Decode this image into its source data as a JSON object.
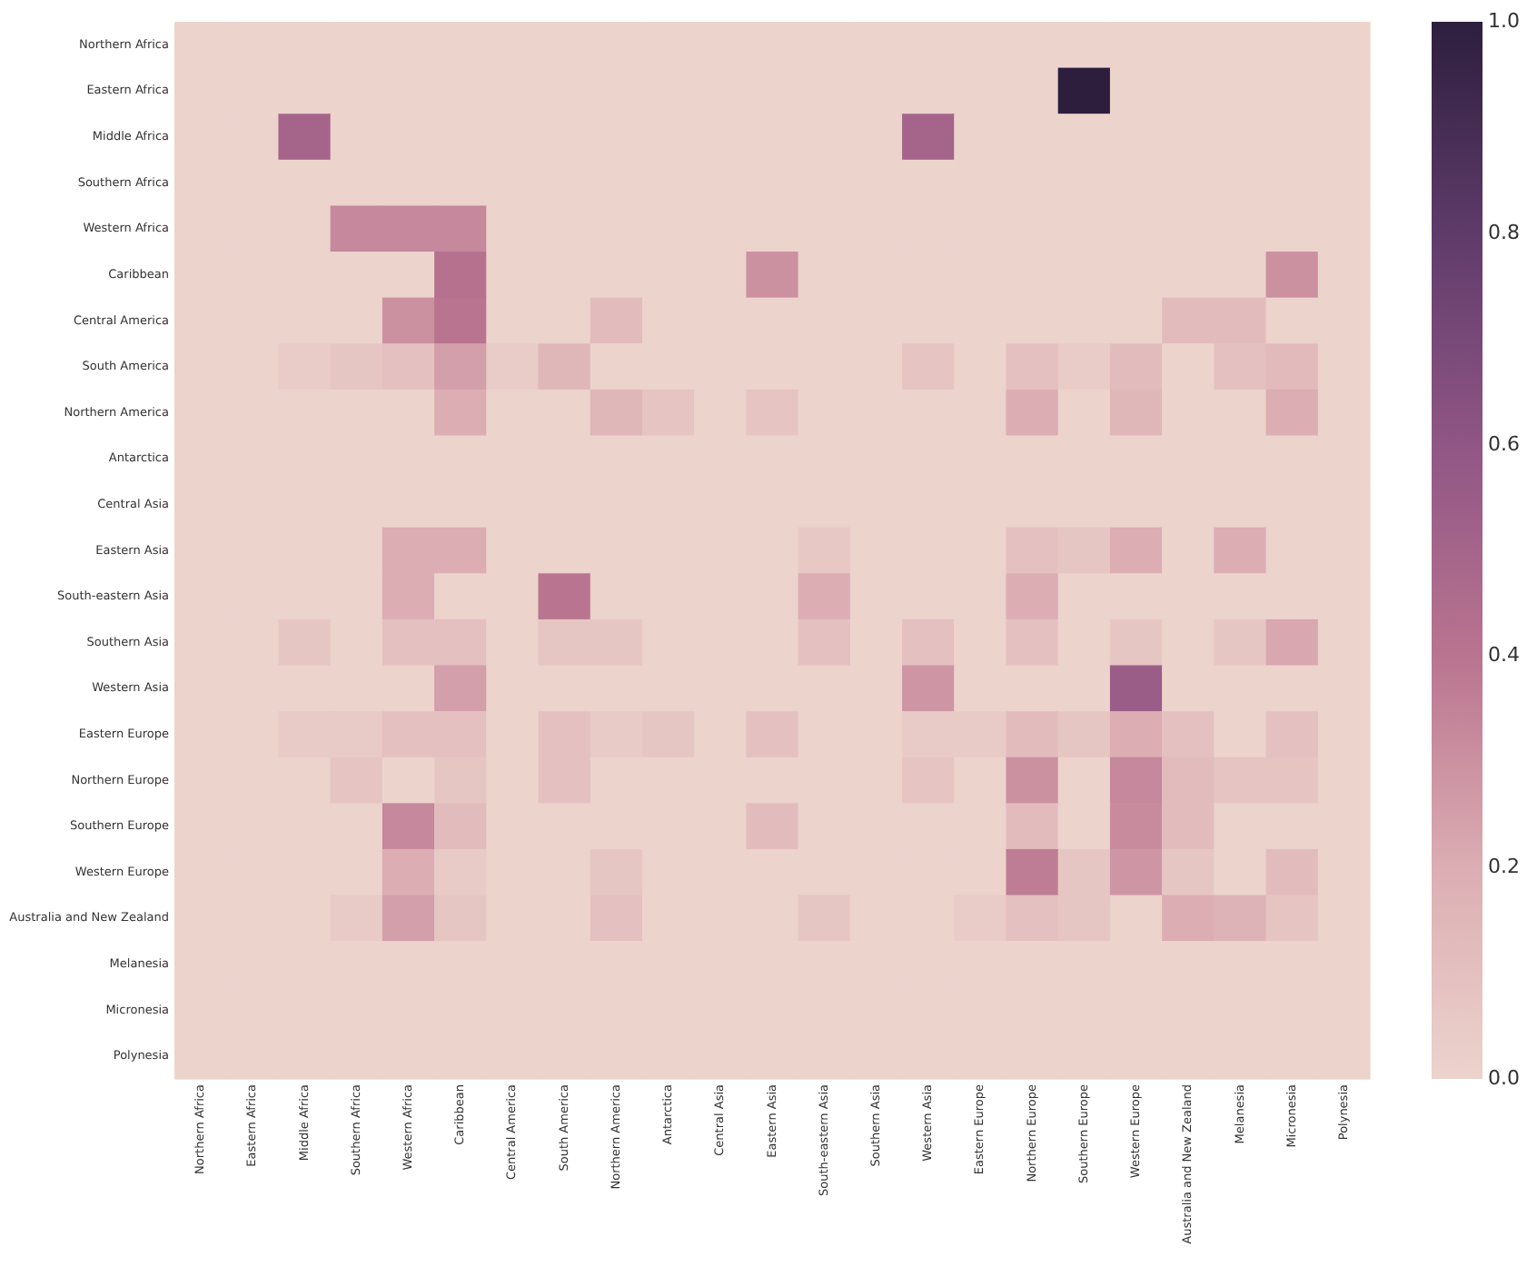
{
  "chart_data": {
    "type": "heatmap",
    "categories": [
      "Northern Africa",
      "Eastern Africa",
      "Middle Africa",
      "Southern Africa",
      "Western Africa",
      "Caribbean",
      "Central America",
      "South America",
      "Northern America",
      "Antarctica",
      "Central Asia",
      "Eastern Asia",
      "South-eastern Asia",
      "Southern Asia",
      "Western Asia",
      "Eastern Europe",
      "Northern Europe",
      "Southern Europe",
      "Western Europe",
      "Australia and New Zealand",
      "Melanesia",
      "Micronesia",
      "Polynesia"
    ],
    "y_categories": [
      "Northern Africa",
      "Eastern Africa",
      "Middle Africa",
      "Southern Africa",
      "Western Africa",
      "Caribbean",
      "Central America",
      "South America",
      "Northern America",
      "Antarctica",
      "Central Asia",
      "Eastern Asia",
      "South-eastern Asia",
      "Southern Asia",
      "Western Asia",
      "Eastern Europe",
      "Northern Europe",
      "Southern Europe",
      "Western Europe",
      "Australia and New Zealand",
      "Melanesia",
      "Micronesia",
      "Polynesia"
    ],
    "cells": [
      [
        0,
        0,
        0,
        0,
        0,
        0,
        0,
        0,
        0,
        0,
        0,
        0,
        0,
        0,
        0,
        0,
        0,
        0,
        0,
        0,
        0,
        0,
        0
      ],
      [
        0,
        0,
        0,
        0,
        0,
        0,
        0,
        0,
        0,
        0,
        0,
        0,
        0,
        0,
        0,
        0,
        0,
        1.0,
        0,
        0,
        0,
        0,
        0
      ],
      [
        0,
        0,
        0.5,
        0,
        0,
        0,
        0,
        0,
        0,
        0,
        0,
        0,
        0,
        0,
        0.5,
        0,
        0,
        0,
        0,
        0,
        0,
        0,
        0
      ],
      [
        0,
        0,
        0,
        0,
        0,
        0,
        0,
        0,
        0,
        0,
        0,
        0,
        0,
        0,
        0,
        0,
        0,
        0,
        0,
        0,
        0,
        0,
        0
      ],
      [
        0,
        0,
        0,
        0.33,
        0.33,
        0.33,
        0,
        0,
        0,
        0,
        0,
        0,
        0,
        0,
        0,
        0,
        0,
        0,
        0,
        0,
        0,
        0,
        0
      ],
      [
        0,
        0,
        0,
        0,
        0,
        0.42,
        0,
        0,
        0,
        0,
        0,
        0.3,
        0,
        0,
        0,
        0,
        0,
        0,
        0,
        0,
        0,
        0.3,
        0
      ],
      [
        0,
        0,
        0,
        0,
        0.3,
        0.4,
        0,
        0,
        0.12,
        0,
        0,
        0,
        0,
        0,
        0,
        0,
        0,
        0,
        0,
        0.12,
        0.12,
        0,
        0
      ],
      [
        0,
        0,
        0.04,
        0.07,
        0.1,
        0.25,
        0.04,
        0.15,
        0,
        0,
        0,
        0,
        0,
        0,
        0.08,
        0,
        0.1,
        0.04,
        0.12,
        0,
        0.1,
        0.13,
        0
      ],
      [
        0,
        0,
        0,
        0,
        0,
        0.2,
        0,
        0,
        0.15,
        0.08,
        0,
        0.08,
        0,
        0,
        0,
        0,
        0.2,
        0,
        0.15,
        0,
        0,
        0.2,
        0
      ],
      [
        0,
        0,
        0,
        0,
        0,
        0,
        0,
        0,
        0,
        0,
        0,
        0,
        0,
        0,
        0,
        0,
        0,
        0,
        0,
        0,
        0,
        0,
        0
      ],
      [
        0,
        0,
        0,
        0,
        0,
        0,
        0,
        0,
        0,
        0,
        0,
        0,
        0,
        0,
        0,
        0,
        0,
        0,
        0,
        0,
        0,
        0,
        0
      ],
      [
        0,
        0,
        0,
        0,
        0.2,
        0.2,
        0,
        0,
        0,
        0,
        0,
        0,
        0.06,
        0,
        0,
        0,
        0.1,
        0.07,
        0.2,
        0,
        0.2,
        0,
        0
      ],
      [
        0,
        0,
        0,
        0,
        0.2,
        0,
        0,
        0.4,
        0,
        0,
        0,
        0,
        0.2,
        0,
        0,
        0,
        0.2,
        0,
        0,
        0,
        0,
        0,
        0
      ],
      [
        0,
        0,
        0.07,
        0,
        0.1,
        0.1,
        0,
        0.07,
        0.07,
        0,
        0,
        0,
        0.1,
        0,
        0.1,
        0,
        0.1,
        0,
        0.07,
        0,
        0.07,
        0.22,
        0
      ],
      [
        0,
        0,
        0,
        0,
        0,
        0.25,
        0,
        0,
        0,
        0,
        0,
        0,
        0,
        0,
        0.28,
        0,
        0,
        0,
        0.55,
        0,
        0,
        0,
        0
      ],
      [
        0,
        0,
        0.05,
        0.05,
        0.1,
        0.1,
        0,
        0.1,
        0.05,
        0.07,
        0,
        0.1,
        0,
        0,
        0.05,
        0.05,
        0.12,
        0.07,
        0.2,
        0.1,
        0,
        0.1,
        0
      ],
      [
        0,
        0,
        0,
        0.08,
        0,
        0.07,
        0,
        0.1,
        0,
        0,
        0,
        0,
        0,
        0,
        0.08,
        0,
        0.3,
        0,
        0.33,
        0.12,
        0.08,
        0.08,
        0
      ],
      [
        0,
        0,
        0,
        0,
        0.33,
        0.12,
        0,
        0,
        0,
        0,
        0,
        0.12,
        0,
        0,
        0,
        0,
        0.12,
        0,
        0.32,
        0.12,
        0,
        0,
        0
      ],
      [
        0,
        0,
        0,
        0,
        0.2,
        0.05,
        0,
        0,
        0.07,
        0,
        0,
        0,
        0,
        0,
        0,
        0,
        0.37,
        0.07,
        0.28,
        0.07,
        0,
        0.12,
        0
      ],
      [
        0,
        0,
        0,
        0.05,
        0.25,
        0.07,
        0,
        0,
        0.1,
        0,
        0,
        0,
        0.07,
        0,
        0,
        0.04,
        0.1,
        0.07,
        0,
        0.2,
        0.17,
        0.08,
        0
      ],
      [
        0,
        0,
        0,
        0,
        0,
        0,
        0,
        0,
        0,
        0,
        0,
        0,
        0,
        0,
        0,
        0,
        0,
        0,
        0,
        0,
        0,
        0,
        0
      ],
      [
        0,
        0,
        0,
        0,
        0,
        0,
        0,
        0,
        0,
        0,
        0,
        0,
        0,
        0,
        0,
        0,
        0,
        0,
        0,
        0,
        0,
        0,
        0
      ],
      [
        0,
        0,
        0,
        0,
        0,
        0,
        0,
        0,
        0,
        0,
        0,
        0,
        0,
        0,
        0,
        0,
        0,
        0,
        0,
        0,
        0,
        0,
        0
      ]
    ],
    "clim": [
      0,
      1
    ],
    "cticks": [
      {
        "value": 0,
        "label": "0.0"
      },
      {
        "value": 0.2,
        "label": "0.2"
      },
      {
        "value": 0.4,
        "label": "0.4"
      },
      {
        "value": 0.6,
        "label": "0.6"
      },
      {
        "value": 0.8,
        "label": "0.8"
      },
      {
        "value": 1,
        "label": "1.0"
      }
    ]
  }
}
